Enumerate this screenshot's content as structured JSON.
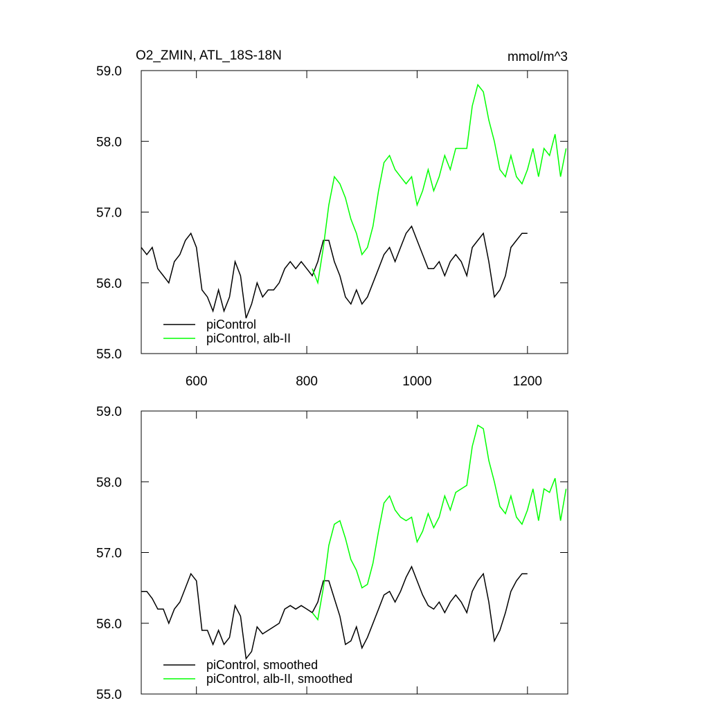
{
  "chart_data": [
    {
      "type": "line",
      "title": "O2_ZMIN, ATL_18S-18N",
      "units": "mmol/m^3",
      "xlim": [
        500,
        1273
      ],
      "xticks": [
        600,
        800,
        1000,
        1200
      ],
      "ylim": [
        55,
        59
      ],
      "yticks": [
        {
          "value": 55,
          "label": "55.0"
        },
        {
          "value": 56,
          "label": "56.0"
        },
        {
          "value": 57,
          "label": "57.0"
        },
        {
          "value": 58,
          "label": "58.0"
        },
        {
          "value": 59,
          "label": "59.0"
        }
      ],
      "legend": "lower left",
      "series": [
        {
          "name": "piControl",
          "color": "#000000",
          "x": [
            500,
            510,
            520,
            530,
            540,
            550,
            560,
            570,
            580,
            590,
            600,
            610,
            620,
            630,
            640,
            650,
            660,
            670,
            680,
            690,
            700,
            710,
            720,
            730,
            740,
            750,
            760,
            770,
            780,
            790,
            800,
            810,
            820,
            830,
            840,
            850,
            860,
            870,
            880,
            890,
            900,
            910,
            920,
            930,
            940,
            950,
            960,
            970,
            980,
            990,
            1000,
            1010,
            1020,
            1030,
            1040,
            1050,
            1060,
            1070,
            1080,
            1090,
            1100,
            1110,
            1120,
            1130,
            1140,
            1150,
            1160,
            1170,
            1180,
            1190,
            1200
          ],
          "values": [
            56.5,
            56.4,
            56.5,
            56.2,
            56.1,
            56.0,
            56.3,
            56.4,
            56.6,
            56.7,
            56.5,
            55.9,
            55.8,
            55.6,
            55.9,
            55.6,
            55.8,
            56.3,
            56.1,
            55.5,
            55.7,
            56.0,
            55.8,
            55.9,
            55.9,
            56.0,
            56.2,
            56.3,
            56.2,
            56.3,
            56.2,
            56.1,
            56.3,
            56.6,
            56.6,
            56.3,
            56.1,
            55.8,
            55.7,
            55.9,
            55.7,
            55.8,
            56.0,
            56.2,
            56.4,
            56.5,
            56.3,
            56.5,
            56.7,
            56.8,
            56.6,
            56.4,
            56.2,
            56.2,
            56.3,
            56.1,
            56.3,
            56.4,
            56.3,
            56.1,
            56.5,
            56.6,
            56.7,
            56.3,
            55.8,
            55.9,
            56.1,
            56.5,
            56.6,
            56.7,
            56.7
          ]
        },
        {
          "name": "piControl, alb-II",
          "color": "#00ff00",
          "x": [
            810,
            820,
            830,
            840,
            850,
            860,
            870,
            880,
            890,
            900,
            910,
            920,
            930,
            940,
            950,
            960,
            970,
            980,
            990,
            1000,
            1010,
            1020,
            1030,
            1040,
            1050,
            1060,
            1070,
            1080,
            1090,
            1100,
            1110,
            1120,
            1130,
            1140,
            1150,
            1160,
            1170,
            1180,
            1190,
            1200,
            1210,
            1220,
            1230,
            1240,
            1250,
            1260,
            1270
          ],
          "values": [
            56.2,
            56.0,
            56.5,
            57.1,
            57.5,
            57.4,
            57.2,
            56.9,
            56.7,
            56.4,
            56.5,
            56.8,
            57.3,
            57.7,
            57.8,
            57.6,
            57.5,
            57.4,
            57.5,
            57.1,
            57.3,
            57.6,
            57.3,
            57.5,
            57.8,
            57.6,
            57.9,
            57.9,
            57.9,
            58.5,
            58.8,
            58.7,
            58.3,
            58.0,
            57.6,
            57.5,
            57.8,
            57.5,
            57.4,
            57.6,
            57.9,
            57.5,
            57.9,
            57.8,
            58.1,
            57.5,
            57.9
          ]
        }
      ]
    },
    {
      "type": "line",
      "xlim": [
        500,
        1273
      ],
      "xticks": [
        600,
        800,
        1000,
        1200
      ],
      "ylim": [
        55,
        59
      ],
      "yticks": [
        {
          "value": 55,
          "label": "55.0"
        },
        {
          "value": 56,
          "label": "56.0"
        },
        {
          "value": 57,
          "label": "57.0"
        },
        {
          "value": 58,
          "label": "58.0"
        },
        {
          "value": 59,
          "label": "59.0"
        }
      ],
      "legend": "lower left",
      "series": [
        {
          "name": "piControl, smoothed",
          "color": "#000000",
          "x": [
            500,
            510,
            520,
            530,
            540,
            550,
            560,
            570,
            580,
            590,
            600,
            610,
            620,
            630,
            640,
            650,
            660,
            670,
            680,
            690,
            700,
            710,
            720,
            730,
            740,
            750,
            760,
            770,
            780,
            790,
            800,
            810,
            820,
            830,
            840,
            850,
            860,
            870,
            880,
            890,
            900,
            910,
            920,
            930,
            940,
            950,
            960,
            970,
            980,
            990,
            1000,
            1010,
            1020,
            1030,
            1040,
            1050,
            1060,
            1070,
            1080,
            1090,
            1100,
            1110,
            1120,
            1130,
            1140,
            1150,
            1160,
            1170,
            1180,
            1190,
            1200
          ],
          "values": [
            56.45,
            56.45,
            56.35,
            56.2,
            56.2,
            56.0,
            56.2,
            56.3,
            56.5,
            56.7,
            56.6,
            55.9,
            55.9,
            55.7,
            55.9,
            55.7,
            55.8,
            56.25,
            56.1,
            55.5,
            55.6,
            55.95,
            55.85,
            55.9,
            55.95,
            56.0,
            56.2,
            56.25,
            56.2,
            56.25,
            56.2,
            56.15,
            56.3,
            56.6,
            56.6,
            56.35,
            56.1,
            55.7,
            55.75,
            55.95,
            55.65,
            55.8,
            56.0,
            56.2,
            56.4,
            56.45,
            56.3,
            56.45,
            56.65,
            56.8,
            56.6,
            56.4,
            56.25,
            56.2,
            56.3,
            56.15,
            56.3,
            56.4,
            56.3,
            56.15,
            56.45,
            56.6,
            56.7,
            56.3,
            55.75,
            55.9,
            56.15,
            56.45,
            56.6,
            56.7,
            56.7
          ]
        },
        {
          "name": "piControl, alb-II, smoothed",
          "color": "#00ff00",
          "x": [
            810,
            820,
            830,
            840,
            850,
            860,
            870,
            880,
            890,
            900,
            910,
            920,
            930,
            940,
            950,
            960,
            970,
            980,
            990,
            1000,
            1010,
            1020,
            1030,
            1040,
            1050,
            1060,
            1070,
            1080,
            1090,
            1100,
            1110,
            1120,
            1130,
            1140,
            1150,
            1160,
            1170,
            1180,
            1190,
            1200,
            1210,
            1220,
            1230,
            1240,
            1250,
            1260,
            1270
          ],
          "values": [
            56.15,
            56.05,
            56.5,
            57.1,
            57.4,
            57.45,
            57.2,
            56.9,
            56.75,
            56.5,
            56.55,
            56.85,
            57.3,
            57.7,
            57.8,
            57.6,
            57.5,
            57.45,
            57.5,
            57.15,
            57.3,
            57.55,
            57.35,
            57.5,
            57.8,
            57.6,
            57.85,
            57.9,
            57.95,
            58.5,
            58.8,
            58.75,
            58.3,
            58.0,
            57.65,
            57.55,
            57.8,
            57.5,
            57.4,
            57.6,
            57.9,
            57.45,
            57.9,
            57.85,
            58.05,
            57.45,
            57.9
          ]
        }
      ]
    }
  ]
}
